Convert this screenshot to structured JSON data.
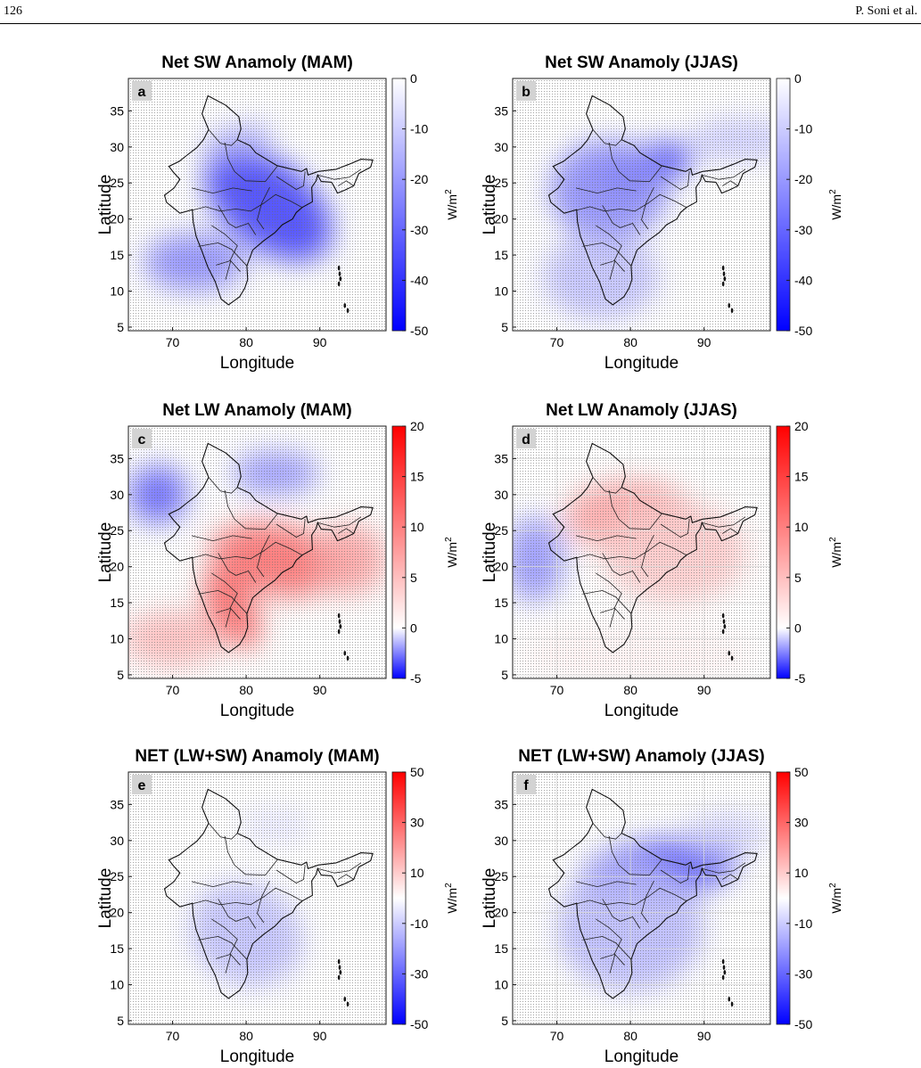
{
  "header": {
    "page_number": "126",
    "authors": "P. Soni et al."
  },
  "chart_data": [
    {
      "type": "heatmap",
      "panel_letter": "a",
      "title": "Net SW Anamoly (MAM)",
      "xlabel": "Longitude",
      "ylabel": "Latitude",
      "colorbar_label": "W/m",
      "colorbar_superscript": "2",
      "xlim": [
        64,
        99
      ],
      "ylim": [
        4.5,
        39.5
      ],
      "xticks": [
        "70",
        "80",
        "90"
      ],
      "yticks": [
        "5",
        "10",
        "15",
        "20",
        "25",
        "30",
        "35"
      ],
      "colorbar_ticks": [
        "0",
        "-10",
        "-20",
        "-30",
        "-40",
        "-50"
      ],
      "colorbar_range": [
        -50,
        0
      ],
      "colormap": [
        "#0000ff",
        "#ffffff",
        "#ff0000"
      ],
      "colormap_range": [
        -50,
        50
      ],
      "grid": false
    },
    {
      "type": "heatmap",
      "panel_letter": "b",
      "title": "Net SW Anamoly (JJAS)",
      "xlabel": "Longitude",
      "ylabel": "Latitude",
      "colorbar_label": "W/m",
      "colorbar_superscript": "2",
      "xlim": [
        64,
        99
      ],
      "ylim": [
        4.5,
        39.5
      ],
      "xticks": [
        "70",
        "80",
        "90"
      ],
      "yticks": [
        "5",
        "10",
        "15",
        "20",
        "25",
        "30",
        "35"
      ],
      "colorbar_ticks": [
        "0",
        "-10",
        "-20",
        "-30",
        "-40",
        "-50"
      ],
      "colorbar_range": [
        -50,
        0
      ],
      "colormap": [
        "#0000ff",
        "#ffffff",
        "#ff0000"
      ],
      "colormap_range": [
        -50,
        50
      ],
      "grid": false
    },
    {
      "type": "heatmap",
      "panel_letter": "c",
      "title": "Net LW Anamoly (MAM)",
      "xlabel": "Longitude",
      "ylabel": "Latitude",
      "colorbar_label": "W/m",
      "colorbar_superscript": "2",
      "xlim": [
        64,
        99
      ],
      "ylim": [
        4.5,
        39.5
      ],
      "xticks": [
        "70",
        "80",
        "90"
      ],
      "yticks": [
        "5",
        "10",
        "15",
        "20",
        "25",
        "30",
        "35"
      ],
      "colorbar_ticks": [
        "20",
        "15",
        "10",
        "5",
        "0",
        "-5"
      ],
      "colorbar_range": [
        -5,
        20
      ],
      "colormap": [
        "#0000ff",
        "#ffffff",
        "#ff0000"
      ],
      "colormap_range": [
        -5,
        20
      ],
      "grid": false
    },
    {
      "type": "heatmap",
      "panel_letter": "d",
      "title": "Net LW Anamoly (JJAS)",
      "xlabel": "Longitude",
      "ylabel": "Latitude",
      "colorbar_label": "W/m",
      "colorbar_superscript": "2",
      "xlim": [
        64,
        99
      ],
      "ylim": [
        4.5,
        39.5
      ],
      "xticks": [
        "70",
        "80",
        "90"
      ],
      "yticks": [
        "5",
        "10",
        "15",
        "20",
        "25",
        "30",
        "35"
      ],
      "colorbar_ticks": [
        "20",
        "15",
        "10",
        "5",
        "0",
        "-5"
      ],
      "colorbar_range": [
        -5,
        20
      ],
      "colormap": [
        "#0000ff",
        "#ffffff",
        "#ff0000"
      ],
      "colormap_range": [
        -5,
        20
      ],
      "grid": true
    },
    {
      "type": "heatmap",
      "panel_letter": "e",
      "title": "NET (LW+SW) Anamoly (MAM)",
      "xlabel": "Longitude",
      "ylabel": "Latitude",
      "colorbar_label": "W/m",
      "colorbar_superscript": "2",
      "xlim": [
        64,
        99
      ],
      "ylim": [
        4.5,
        39.5
      ],
      "xticks": [
        "70",
        "80",
        "90"
      ],
      "yticks": [
        "5",
        "10",
        "15",
        "20",
        "25",
        "30",
        "35"
      ],
      "colorbar_ticks": [
        "50",
        "30",
        "10",
        "-10",
        "-30",
        "-50"
      ],
      "colorbar_range": [
        -50,
        50
      ],
      "colormap": [
        "#0000ff",
        "#ffffff",
        "#ff0000"
      ],
      "colormap_range": [
        -50,
        50
      ],
      "grid": false
    },
    {
      "type": "heatmap",
      "panel_letter": "f",
      "title": "NET (LW+SW) Anamoly (JJAS)",
      "xlabel": "Longitude",
      "ylabel": "Latitude",
      "colorbar_label": "W/m",
      "colorbar_superscript": "2",
      "xlim": [
        64,
        99
      ],
      "ylim": [
        4.5,
        39.5
      ],
      "xticks": [
        "70",
        "80",
        "90"
      ],
      "yticks": [
        "5",
        "10",
        "15",
        "20",
        "25",
        "30",
        "35"
      ],
      "colorbar_ticks": [
        "50",
        "30",
        "10",
        "-10",
        "-30",
        "-50"
      ],
      "colorbar_range": [
        -50,
        50
      ],
      "colormap": [
        "#0000ff",
        "#ffffff",
        "#ff0000"
      ],
      "colormap_range": [
        -50,
        50
      ],
      "grid": true
    }
  ]
}
